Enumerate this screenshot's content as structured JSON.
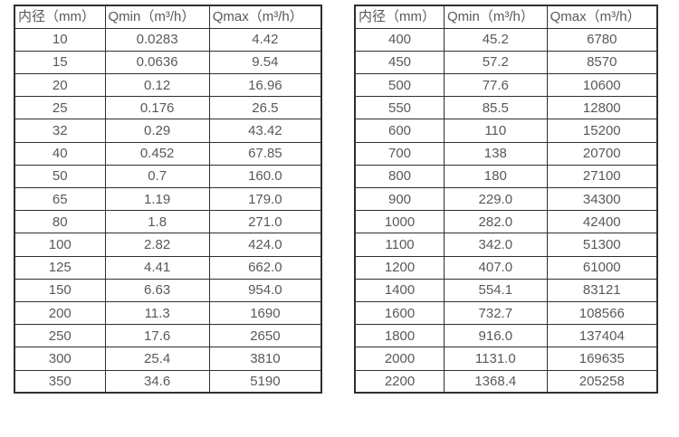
{
  "colors": {
    "background": "#ffffff",
    "border": "#2f2f2f",
    "text": "#595959"
  },
  "tables": [
    {
      "id": "diameter-flow-table-small",
      "headers": [
        "内径（mm）",
        "Qmin（m³/h）",
        "Qmax（m³/h）"
      ],
      "rows": [
        [
          "10",
          "0.0283",
          "4.42"
        ],
        [
          "15",
          "0.0636",
          "9.54"
        ],
        [
          "20",
          "0.12",
          "16.96"
        ],
        [
          "25",
          "0.176",
          "26.5"
        ],
        [
          "32",
          "0.29",
          "43.42"
        ],
        [
          "40",
          "0.452",
          "67.85"
        ],
        [
          "50",
          "0.7",
          "160.0"
        ],
        [
          "65",
          "1.19",
          "179.0"
        ],
        [
          "80",
          "1.8",
          "271.0"
        ],
        [
          "100",
          "2.82",
          "424.0"
        ],
        [
          "125",
          "4.41",
          "662.0"
        ],
        [
          "150",
          "6.63",
          "954.0"
        ],
        [
          "200",
          "11.3",
          "1690"
        ],
        [
          "250",
          "17.6",
          "2650"
        ],
        [
          "300",
          "25.4",
          "3810"
        ],
        [
          "350",
          "34.6",
          "5190"
        ]
      ]
    },
    {
      "id": "diameter-flow-table-large",
      "headers": [
        "内径（mm）",
        "Qmin（m³/h）",
        "Qmax（m³/h）"
      ],
      "rows": [
        [
          "400",
          "45.2",
          "6780"
        ],
        [
          "450",
          "57.2",
          "8570"
        ],
        [
          "500",
          "77.6",
          "10600"
        ],
        [
          "550",
          "85.5",
          "12800"
        ],
        [
          "600",
          "110",
          "15200"
        ],
        [
          "700",
          "138",
          "20700"
        ],
        [
          "800",
          "180",
          "27100"
        ],
        [
          "900",
          "229.0",
          "34300"
        ],
        [
          "1000",
          "282.0",
          "42400"
        ],
        [
          "1100",
          "342.0",
          "51300"
        ],
        [
          "1200",
          "407.0",
          "61000"
        ],
        [
          "1400",
          "554.1",
          "83121"
        ],
        [
          "1600",
          "732.7",
          "108566"
        ],
        [
          "1800",
          "916.0",
          "137404"
        ],
        [
          "2000",
          "1131.0",
          "169635"
        ],
        [
          "2200",
          "1368.4",
          "205258"
        ]
      ]
    }
  ]
}
